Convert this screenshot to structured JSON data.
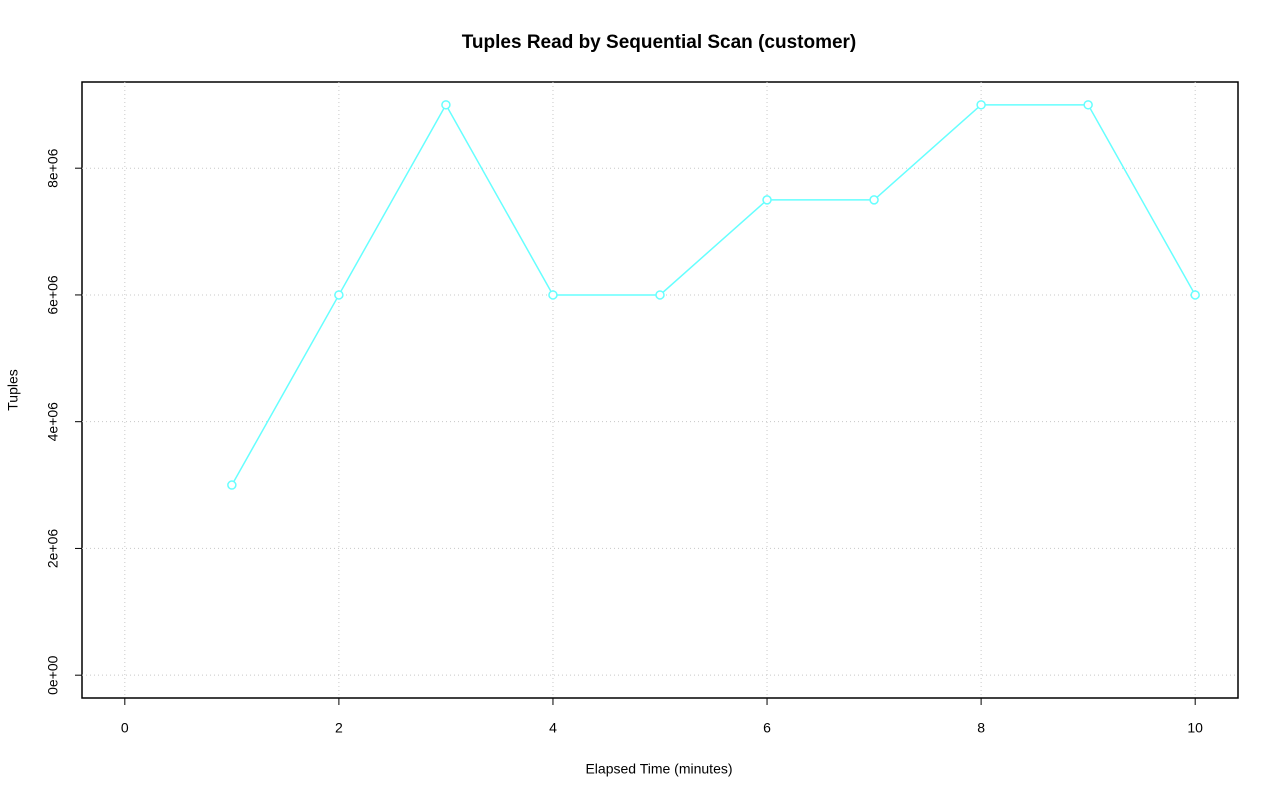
{
  "chart_data": {
    "type": "line",
    "title": "Tuples Read by Sequential Scan (customer)",
    "x_label": "Elapsed Time (minutes)",
    "y_label": "Tuples",
    "x": [
      1,
      2,
      3,
      4,
      5,
      6,
      7,
      8,
      9,
      10
    ],
    "series": [
      {
        "name": "customer",
        "color": "#66ffff",
        "values": [
          3000000,
          6000000,
          9000000,
          6000000,
          6000000,
          7500000,
          7500000,
          9000000,
          9000000,
          6000000
        ]
      }
    ],
    "xlim": [
      -0.4,
      10.4
    ],
    "xticks": [
      0,
      2,
      4,
      6,
      8,
      10
    ],
    "ylim": [
      -360000,
      9360000
    ],
    "yticks": [
      {
        "value": 0,
        "label": "0e+00"
      },
      {
        "value": 2000000,
        "label": "2e+06"
      },
      {
        "value": 4000000,
        "label": "4e+06"
      },
      {
        "value": 6000000,
        "label": "6e+06"
      },
      {
        "value": 8000000,
        "label": "8e+06"
      }
    ],
    "grid": true
  }
}
